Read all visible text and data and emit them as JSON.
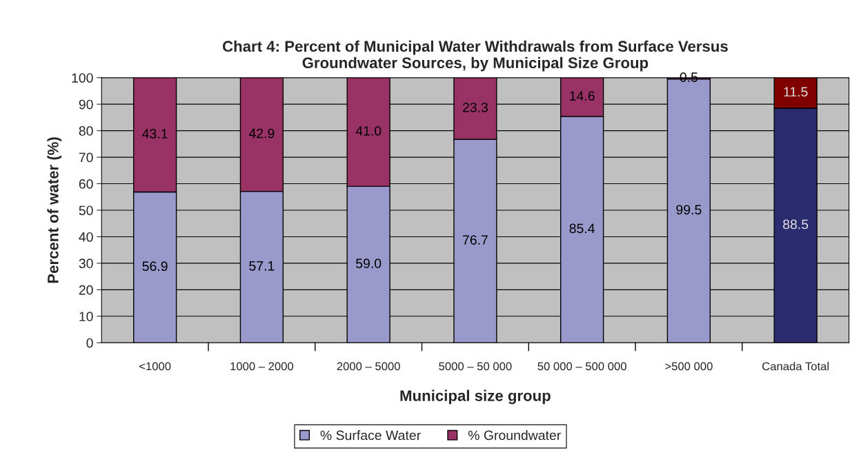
{
  "chart_data": {
    "type": "bar",
    "stacked": true,
    "title": "Chart 4: Percent of Municipal Water Withdrawals from Surface Versus\nGroundwater Sources, by Municipal Size Group",
    "xlabel": "Municipal size group",
    "ylabel": "Percent of water (%)",
    "categories": [
      "<1000",
      "1000 – 2000",
      "2000 – 5000",
      "5000 – 50 000",
      "50 000 – 500 000",
      ">500 000",
      "Canada Total"
    ],
    "series": [
      {
        "name": "% Surface Water",
        "color": "#9999cc",
        "colors": [
          "#9999cc",
          "#9999cc",
          "#9999cc",
          "#9999cc",
          "#9999cc",
          "#9999cc",
          "#2b2b70"
        ],
        "values": [
          56.9,
          57.1,
          59.0,
          76.7,
          85.4,
          99.5,
          88.5
        ],
        "value_labels": [
          "56.9",
          "57.1",
          "59.0",
          "76.7",
          "85.4",
          "99.5",
          "88.5"
        ]
      },
      {
        "name": "% Groundwater",
        "color": "#993366",
        "colors": [
          "#993366",
          "#993366",
          "#993366",
          "#993366",
          "#993366",
          "#993366",
          "#800000"
        ],
        "values": [
          43.1,
          42.9,
          41.0,
          23.3,
          14.6,
          0.5,
          11.5
        ],
        "value_labels": [
          "43.1",
          "42.9",
          "41.0",
          "23.3",
          "14.6",
          "0.5",
          "11.5"
        ]
      }
    ],
    "ylim": [
      0,
      100
    ],
    "yticks": [
      0,
      10,
      20,
      30,
      40,
      50,
      60,
      70,
      80,
      90,
      100
    ],
    "grid": "y",
    "legend": "bottom"
  }
}
